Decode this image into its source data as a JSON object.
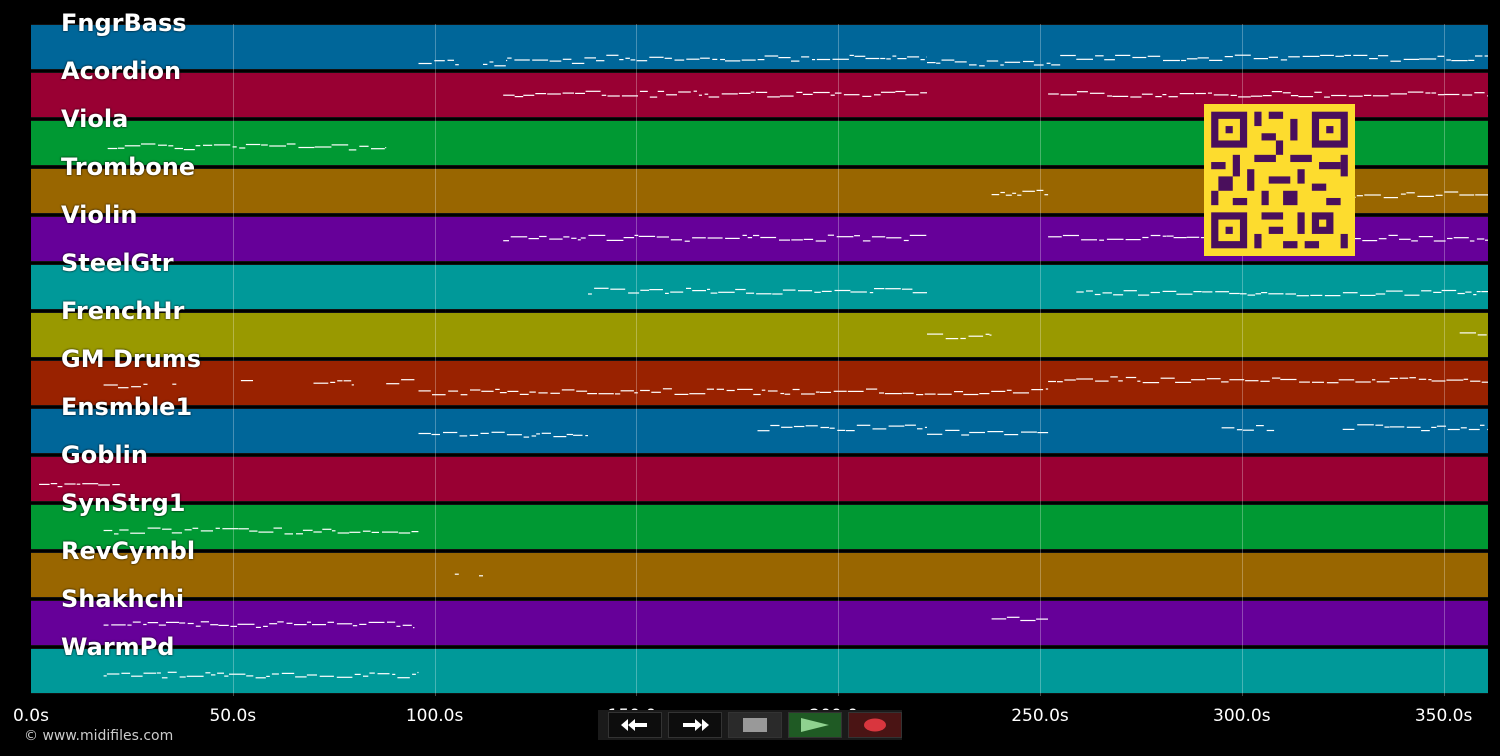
{
  "app": {
    "credit": "© www.midifiles.com"
  },
  "colors": {
    "background": "#000000",
    "note": "#ffffff",
    "track_palette": [
      "#006699",
      "#990033",
      "#009933",
      "#996600",
      "#660099",
      "#009999",
      "#999900",
      "#992200"
    ]
  },
  "tracks": [
    {
      "name": "FngrBass",
      "color": "#006699"
    },
    {
      "name": "Acordion",
      "color": "#990033"
    },
    {
      "name": "Viola",
      "color": "#009933"
    },
    {
      "name": "Trombone",
      "color": "#996600"
    },
    {
      "name": "Violin",
      "color": "#660099"
    },
    {
      "name": "SteelGtr",
      "color": "#009999"
    },
    {
      "name": "FrenchHr",
      "color": "#999900"
    },
    {
      "name": "GM Drums",
      "color": "#992200"
    },
    {
      "name": "Ensmble1",
      "color": "#006699"
    },
    {
      "name": "Goblin",
      "color": "#990033"
    },
    {
      "name": "SynStrg1",
      "color": "#009933"
    },
    {
      "name": "RevCymbl",
      "color": "#996600"
    },
    {
      "name": "Shakhchi",
      "color": "#660099"
    },
    {
      "name": "WarmPd",
      "color": "#009999"
    }
  ],
  "timeline": {
    "ticks": [
      "0.0s",
      "50.0s",
      "100.0s",
      "150.0s",
      "200.0s",
      "250.0s",
      "300.0s",
      "350.0s"
    ],
    "tick_values": [
      0,
      50,
      100,
      150,
      200,
      250,
      300,
      350
    ],
    "max_seconds": 361
  },
  "controls": {
    "rewind": {
      "icon": "rewind-icon"
    },
    "fast_forward": {
      "icon": "fast-forward-icon"
    },
    "stop": {
      "icon": "stop-icon"
    },
    "play": {
      "icon": "play-icon"
    },
    "record": {
      "icon": "record-icon"
    }
  },
  "overlay": {
    "qr": {
      "icon": "qr-code-icon",
      "colors": [
        "#fddc2e",
        "#4a0f5c"
      ]
    }
  },
  "notes": [
    {
      "track": 0,
      "segments": [
        [
          96,
          106
        ],
        [
          112,
          118
        ],
        [
          118,
          140
        ],
        [
          140,
          222
        ],
        [
          222,
          255
        ],
        [
          255,
          361
        ]
      ],
      "pitch": [
        0.8,
        0.8,
        0.75,
        0.7,
        0.8,
        0.7
      ]
    },
    {
      "track": 1,
      "segments": [
        [
          117,
          222
        ],
        [
          252,
          361
        ]
      ],
      "pitch": [
        0.45,
        0.45
      ]
    },
    {
      "track": 2,
      "segments": [
        [
          19,
          88
        ]
      ],
      "pitch": [
        0.55
      ]
    },
    {
      "track": 3,
      "segments": [
        [
          238,
          252
        ],
        [
          327,
          361
        ]
      ],
      "pitch": [
        0.5,
        0.55
      ]
    },
    {
      "track": 4,
      "segments": [
        [
          117,
          222
        ],
        [
          252,
          361
        ]
      ],
      "pitch": [
        0.45,
        0.45
      ]
    },
    {
      "track": 5,
      "segments": [
        [
          138,
          222
        ],
        [
          259,
          361
        ]
      ],
      "pitch": [
        0.55,
        0.6
      ]
    },
    {
      "track": 6,
      "segments": [
        [
          222,
          238
        ],
        [
          354,
          361
        ]
      ],
      "pitch": [
        0.5,
        0.45
      ]
    },
    {
      "track": 7,
      "segments": [
        [
          18,
          29
        ],
        [
          35,
          36
        ],
        [
          52,
          55
        ],
        [
          70,
          80
        ],
        [
          88,
          95
        ],
        [
          96,
          252
        ],
        [
          252,
          361
        ]
      ],
      "pitch": [
        0.55,
        0.45,
        0.45,
        0.45,
        0.45,
        0.65,
        0.4
      ]
    },
    {
      "track": 8,
      "segments": [
        [
          96,
          138
        ],
        [
          180,
          222
        ],
        [
          222,
          252
        ],
        [
          295,
          308
        ],
        [
          325,
          361
        ]
      ],
      "pitch": [
        0.55,
        0.4,
        0.5,
        0.4,
        0.4
      ]
    },
    {
      "track": 9,
      "segments": [
        [
          2,
          22
        ]
      ],
      "pitch": [
        0.6
      ]
    },
    {
      "track": 10,
      "segments": [
        [
          18,
          96
        ]
      ],
      "pitch": [
        0.55
      ]
    },
    {
      "track": 11,
      "segments": [
        [
          105,
          106
        ],
        [
          111,
          112
        ]
      ],
      "pitch": [
        0.45,
        0.45
      ]
    },
    {
      "track": 12,
      "segments": [
        [
          18,
          95
        ],
        [
          238,
          252
        ]
      ],
      "pitch": [
        0.5,
        0.4
      ]
    },
    {
      "track": 13,
      "segments": [
        [
          18,
          96
        ]
      ],
      "pitch": [
        0.55
      ]
    }
  ]
}
